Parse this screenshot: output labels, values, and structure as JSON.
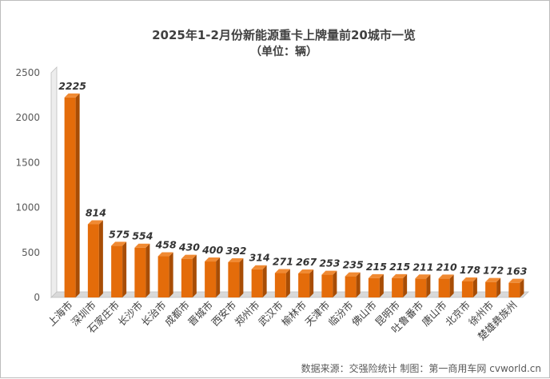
{
  "chart_data": {
    "type": "bar",
    "title": "2025年1-2月份新能源重卡上牌量前20城市一览",
    "subtitle": "（单位：辆）",
    "categories": [
      "上海市",
      "深圳市",
      "石家庄市",
      "长沙市",
      "长治市",
      "成都市",
      "晋城市",
      "西安市",
      "郑州市",
      "武汉市",
      "榆林市",
      "天津市",
      "临汾市",
      "佛山市",
      "昆明市",
      "吐鲁番市",
      "唐山市",
      "北京市",
      "徐州市",
      "楚雄彝族州"
    ],
    "values": [
      2225,
      814,
      575,
      554,
      458,
      430,
      400,
      392,
      314,
      271,
      267,
      253,
      235,
      215,
      215,
      211,
      210,
      178,
      172,
      163
    ],
    "ylim": [
      0,
      2500
    ],
    "yticks": [
      0,
      500,
      1000,
      1500,
      2000,
      2500
    ],
    "xlabel": "",
    "ylabel": "",
    "grid": false,
    "legend": "none",
    "bar_color": "#E46C0A"
  },
  "footer": "数据来源：交强险统计   制图：第一商用车网 cvworld.cn"
}
